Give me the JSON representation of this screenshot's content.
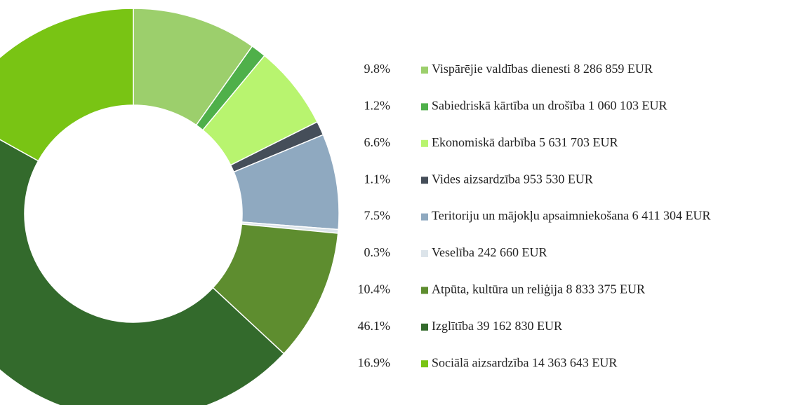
{
  "chart_data": {
    "type": "donut",
    "categories": [
      "Vispārējie valdības dienesti 8 286 859 EUR",
      "Sabiedriskā kārtība un drošība 1 060 103 EUR",
      "Ekonomiskā darbība 5 631 703 EUR",
      "Vides aizsardzība 953 530 EUR",
      "Teritoriju un mājokļu apsaimniekošana 6 411 304 EUR",
      "Veselība 242 660 EUR",
      "Atpūta, kultūra un reliģija 8 833 375 EUR",
      "Izglītība 39 162 830 EUR",
      "Sociālā aizsardzība 14 363 643 EUR"
    ],
    "values": [
      9.8,
      1.2,
      6.6,
      1.1,
      7.5,
      0.3,
      10.4,
      46.1,
      16.9
    ],
    "value_labels": [
      "9.8%",
      "1.2%",
      "6.6%",
      "1.1%",
      "7.5%",
      "0.3%",
      "10.4%",
      "46.1%",
      "16.9%"
    ],
    "colors": [
      "#9ccf6c",
      "#4fb04a",
      "#b8f46f",
      "#454e59",
      "#8fa9c0",
      "#dce4ea",
      "#5e8d2f",
      "#336a2c",
      "#79c414"
    ],
    "legend": "right"
  }
}
